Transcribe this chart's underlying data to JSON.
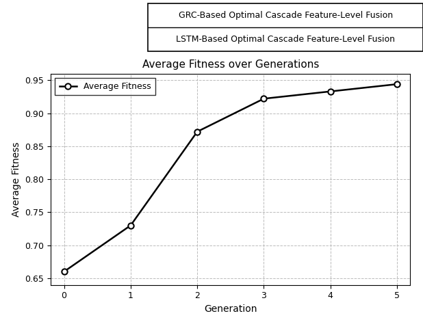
{
  "title": "Average Fitness over Generations",
  "xlabel": "Generation",
  "ylabel": "Average Fitness",
  "x": [
    0,
    1,
    2,
    3,
    4,
    5
  ],
  "y": [
    0.66,
    0.73,
    0.872,
    0.922,
    0.933,
    0.944
  ],
  "ylim": [
    0.64,
    0.96
  ],
  "xlim": [
    -0.2,
    5.2
  ],
  "yticks": [
    0.65,
    0.7,
    0.75,
    0.8,
    0.85,
    0.9,
    0.95
  ],
  "xticks": [
    0,
    1,
    2,
    3,
    4,
    5
  ],
  "line_color": "#000000",
  "marker": "o",
  "marker_facecolor": "#ffffff",
  "marker_edgecolor": "#000000",
  "marker_size": 6,
  "line_width": 1.8,
  "legend_label": "Average Fitness",
  "grid": true,
  "grid_color": "#bbbbbb",
  "grid_linestyle": "--",
  "title_fontsize": 11,
  "label_fontsize": 10,
  "tick_fontsize": 9,
  "legend_fontsize": 9,
  "table_rows": [
    "GRC-Based Optimal Cascade Feature-Level Fusion",
    "LSTM-Based Optimal Cascade Feature-Level Fusion"
  ],
  "fig_width": 6.18,
  "fig_height": 4.68
}
